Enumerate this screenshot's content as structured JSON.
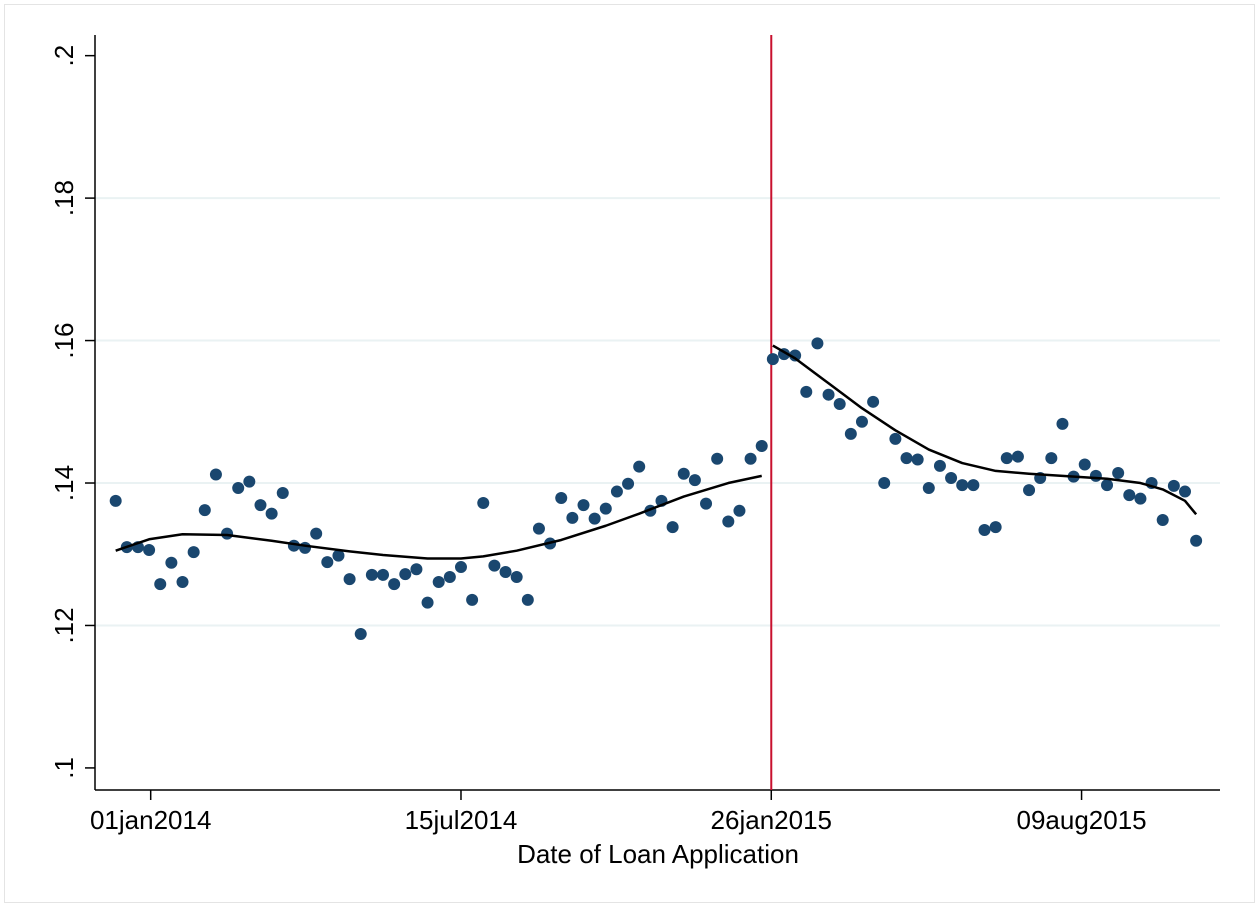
{
  "chart_data": {
    "type": "scatter",
    "x_label": "Date of Loan Application",
    "xlim": [
      "2013-11-27",
      "2015-11-04"
    ],
    "xticks": [
      {
        "value": "2014-01-01",
        "label": "01jan2014"
      },
      {
        "value": "2014-07-15",
        "label": "15jul2014"
      },
      {
        "value": "2015-01-26",
        "label": "26jan2015"
      },
      {
        "value": "2015-08-09",
        "label": "09aug2015"
      }
    ],
    "ylim": [
      0.0969,
      0.2029
    ],
    "yticks": [
      {
        "value": 0.1,
        "label": ".1"
      },
      {
        "value": 0.12,
        "label": ".12"
      },
      {
        "value": 0.14,
        "label": ".14"
      },
      {
        "value": 0.16,
        "label": ".16"
      },
      {
        "value": 0.18,
        "label": ".18"
      },
      {
        "value": 0.2,
        "label": ".2"
      }
    ],
    "grid": true,
    "xline": {
      "value": "2015-01-26",
      "color": "#c8102e"
    },
    "series": [
      {
        "type": "scatter",
        "color": "#1a476f",
        "x": [
          "2013-12-10",
          "2013-12-17",
          "2013-12-24",
          "2013-12-31",
          "2014-01-07",
          "2014-01-14",
          "2014-01-21",
          "2014-01-28",
          "2014-02-04",
          "2014-02-11",
          "2014-02-18",
          "2014-02-25",
          "2014-03-04",
          "2014-03-11",
          "2014-03-18",
          "2014-03-25",
          "2014-04-01",
          "2014-04-08",
          "2014-04-15",
          "2014-04-22",
          "2014-04-29",
          "2014-05-06",
          "2014-05-13",
          "2014-05-20",
          "2014-05-27",
          "2014-06-03",
          "2014-06-10",
          "2014-06-17",
          "2014-06-24",
          "2014-07-01",
          "2014-07-08",
          "2014-07-15",
          "2014-07-22",
          "2014-07-29",
          "2014-08-05",
          "2014-08-12",
          "2014-08-19",
          "2014-08-26",
          "2014-09-02",
          "2014-09-09",
          "2014-09-16",
          "2014-09-23",
          "2014-09-30",
          "2014-10-07",
          "2014-10-14",
          "2014-10-21",
          "2014-10-28",
          "2014-11-04",
          "2014-11-11",
          "2014-11-18",
          "2014-11-25",
          "2014-12-02",
          "2014-12-09",
          "2014-12-16",
          "2014-12-23",
          "2014-12-30",
          "2015-01-06",
          "2015-01-13",
          "2015-01-20",
          "2015-01-27",
          "2015-02-03",
          "2015-02-10",
          "2015-02-17",
          "2015-02-24",
          "2015-03-03",
          "2015-03-10",
          "2015-03-17",
          "2015-03-24",
          "2015-03-31",
          "2015-04-07",
          "2015-04-14",
          "2015-04-21",
          "2015-04-28",
          "2015-05-05",
          "2015-05-12",
          "2015-05-19",
          "2015-05-26",
          "2015-06-02",
          "2015-06-09",
          "2015-06-16",
          "2015-06-23",
          "2015-06-30",
          "2015-07-07",
          "2015-07-14",
          "2015-07-21",
          "2015-07-28",
          "2015-08-04",
          "2015-08-11",
          "2015-08-18",
          "2015-08-25",
          "2015-09-01",
          "2015-09-08",
          "2015-09-15",
          "2015-09-22",
          "2015-09-29",
          "2015-10-06",
          "2015-10-13",
          "2015-10-20"
        ],
        "values": [
          0.1375,
          0.131,
          0.131,
          0.1306,
          0.1258,
          0.1288,
          0.1261,
          0.1303,
          0.1362,
          0.1412,
          0.1329,
          0.1393,
          0.1402,
          0.1369,
          0.1357,
          0.1386,
          0.1312,
          0.1309,
          0.1329,
          0.1289,
          0.1298,
          0.1265,
          0.1188,
          0.1271,
          0.1271,
          0.1258,
          0.1272,
          0.1279,
          0.1232,
          0.1261,
          0.1268,
          0.1282,
          0.1236,
          0.1372,
          0.1284,
          0.1275,
          0.1268,
          0.1236,
          0.1336,
          0.1315,
          0.1379,
          0.1351,
          0.1369,
          0.135,
          0.1364,
          0.1388,
          0.1399,
          0.1423,
          0.1361,
          0.1375,
          0.1338,
          0.1413,
          0.1404,
          0.1371,
          0.1434,
          0.1346,
          0.1361,
          0.1434,
          0.1452,
          0.1574,
          0.1581,
          0.1579,
          0.1528,
          0.1596,
          0.1524,
          0.1511,
          0.1469,
          0.1486,
          0.1514,
          0.14,
          0.1462,
          0.1435,
          0.1433,
          0.1393,
          0.1424,
          0.1407,
          0.1397,
          0.1397,
          0.1334,
          0.1338,
          0.1435,
          0.1437,
          0.139,
          0.1407,
          0.1435,
          0.1483,
          0.1409,
          0.1426,
          0.141,
          0.1397,
          0.1414,
          0.1383,
          0.1378,
          0.14,
          0.1348,
          0.1396,
          0.1388,
          0.1319
        ]
      },
      {
        "type": "line",
        "color": "#000000",
        "x": [
          "2013-12-10",
          "2013-12-31",
          "2014-01-21",
          "2014-02-18",
          "2014-03-18",
          "2014-04-08",
          "2014-05-06",
          "2014-05-27",
          "2014-06-24",
          "2014-07-15",
          "2014-07-29",
          "2014-08-19",
          "2014-09-16",
          "2014-10-14",
          "2014-11-04",
          "2014-12-02",
          "2014-12-30",
          "2015-01-20"
        ],
        "values": [
          0.1305,
          0.1321,
          0.1328,
          0.1327,
          0.1319,
          0.1312,
          0.1304,
          0.1299,
          0.1294,
          0.1294,
          0.1297,
          0.1305,
          0.132,
          0.134,
          0.1357,
          0.1381,
          0.14,
          0.141
        ]
      },
      {
        "type": "line",
        "color": "#000000",
        "x": [
          "2015-01-27",
          "2015-02-10",
          "2015-03-03",
          "2015-03-24",
          "2015-04-14",
          "2015-05-05",
          "2015-05-26",
          "2015-06-16",
          "2015-07-07",
          "2015-07-28",
          "2015-08-25",
          "2015-09-15",
          "2015-09-29",
          "2015-10-13",
          "2015-10-20"
        ],
        "values": [
          0.1593,
          0.1575,
          0.154,
          0.1505,
          0.1474,
          0.1447,
          0.1428,
          0.1417,
          0.1413,
          0.141,
          0.1406,
          0.14,
          0.1391,
          0.1375,
          0.1356
        ]
      }
    ]
  }
}
